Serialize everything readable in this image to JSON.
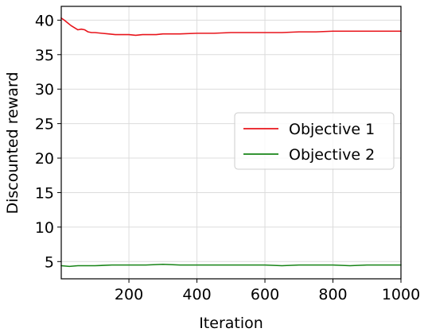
{
  "chart_data": {
    "type": "line",
    "title": "",
    "xlabel": "Iteration",
    "ylabel": "Discounted reward",
    "xlim": [
      1,
      1000
    ],
    "ylim": [
      2.5,
      42
    ],
    "xticks": [
      200,
      400,
      600,
      800,
      1000
    ],
    "xtick_labels": [
      "200",
      "400",
      "600",
      "800",
      "1000"
    ],
    "yticks": [
      5,
      10,
      15,
      20,
      25,
      30,
      35,
      40
    ],
    "ytick_labels": [
      "5",
      "10",
      "15",
      "20",
      "25",
      "30",
      "35",
      "40"
    ],
    "grid": true,
    "legend_position": "center-right",
    "series": [
      {
        "name": "Objective 1",
        "color": "#e8141b",
        "x": [
          1,
          10,
          20,
          30,
          40,
          50,
          60,
          70,
          80,
          90,
          100,
          120,
          140,
          160,
          180,
          200,
          220,
          240,
          260,
          280,
          300,
          350,
          400,
          450,
          500,
          550,
          600,
          650,
          700,
          750,
          800,
          850,
          900,
          950,
          1000
        ],
        "values": [
          40.3,
          40.0,
          39.6,
          39.2,
          38.9,
          38.6,
          38.7,
          38.6,
          38.3,
          38.2,
          38.2,
          38.1,
          38.0,
          37.9,
          37.9,
          37.9,
          37.8,
          37.9,
          37.9,
          37.9,
          38.0,
          38.0,
          38.1,
          38.1,
          38.2,
          38.2,
          38.2,
          38.2,
          38.3,
          38.3,
          38.4,
          38.4,
          38.4,
          38.4,
          38.4
        ]
      },
      {
        "name": "Objective 2",
        "color": "#178417",
        "x": [
          1,
          25,
          50,
          75,
          100,
          150,
          200,
          250,
          300,
          350,
          400,
          450,
          500,
          550,
          600,
          650,
          700,
          750,
          800,
          850,
          900,
          950,
          1000
        ],
        "values": [
          4.4,
          4.3,
          4.4,
          4.4,
          4.4,
          4.5,
          4.5,
          4.5,
          4.6,
          4.5,
          4.5,
          4.5,
          4.5,
          4.5,
          4.5,
          4.4,
          4.5,
          4.5,
          4.5,
          4.4,
          4.5,
          4.5,
          4.5
        ]
      }
    ]
  }
}
